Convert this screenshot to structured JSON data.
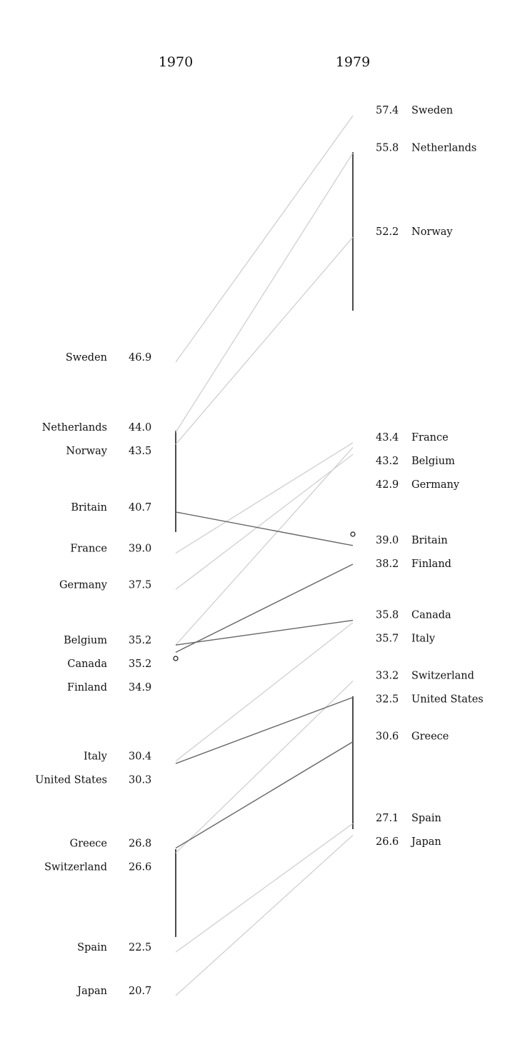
{
  "chart_data": {
    "type": "slope",
    "title": "",
    "columns": [
      "1970",
      "1979"
    ],
    "series": [
      {
        "name": "Sweden",
        "left": 46.9,
        "right": 57.4
      },
      {
        "name": "Netherlands",
        "left": 44.0,
        "right": 55.8
      },
      {
        "name": "Norway",
        "left": 43.5,
        "right": 52.2
      },
      {
        "name": "Britain",
        "left": 40.7,
        "right": 39.0
      },
      {
        "name": "France",
        "left": 39.0,
        "right": 43.4
      },
      {
        "name": "Germany",
        "left": 37.5,
        "right": 42.9
      },
      {
        "name": "Belgium",
        "left": 35.2,
        "right": 43.2
      },
      {
        "name": "Canada",
        "left": 35.2,
        "right": 35.8
      },
      {
        "name": "Finland",
        "left": 34.9,
        "right": 38.2
      },
      {
        "name": "Italy",
        "left": 30.4,
        "right": 35.7
      },
      {
        "name": "United States",
        "left": 30.3,
        "right": 32.5
      },
      {
        "name": "Greece",
        "left": 26.8,
        "right": 30.6
      },
      {
        "name": "Switzerland",
        "left": 26.6,
        "right": 33.2
      },
      {
        "name": "Spain",
        "left": 22.5,
        "right": 27.1
      },
      {
        "name": "Japan",
        "left": 20.7,
        "right": 26.6
      }
    ],
    "left_labels": [
      {
        "name": "Sweden",
        "value": "46.9"
      },
      {
        "name": "Netherlands",
        "value": "44.0"
      },
      {
        "name": "Norway",
        "value": "43.5"
      },
      {
        "name": "Britain",
        "value": "40.7"
      },
      {
        "name": "France",
        "value": "39.0"
      },
      {
        "name": "Germany",
        "value": "37.5"
      },
      {
        "name": "Belgium",
        "value": "35.2"
      },
      {
        "name": "Canada",
        "value": "35.2"
      },
      {
        "name": "Finland",
        "value": "34.9"
      },
      {
        "name": "Italy",
        "value": "30.4"
      },
      {
        "name": "United States",
        "value": "30.3"
      },
      {
        "name": "Greece",
        "value": "26.8"
      },
      {
        "name": "Switzerland",
        "value": "26.6"
      },
      {
        "name": "Spain",
        "value": "22.5"
      },
      {
        "name": "Japan",
        "value": "20.7"
      }
    ],
    "right_labels": [
      {
        "name": "Sweden",
        "value": "57.4"
      },
      {
        "name": "Netherlands",
        "value": "55.8"
      },
      {
        "name": "Norway",
        "value": "52.2"
      },
      {
        "name": "France",
        "value": "43.4"
      },
      {
        "name": "Belgium",
        "value": "43.2"
      },
      {
        "name": "Germany",
        "value": "42.9"
      },
      {
        "name": "Britain",
        "value": "39.0"
      },
      {
        "name": "Finland",
        "value": "38.2"
      },
      {
        "name": "Canada",
        "value": "35.8"
      },
      {
        "name": "Italy",
        "value": "35.7"
      },
      {
        "name": "Switzerland",
        "value": "33.2"
      },
      {
        "name": "United States",
        "value": "32.5"
      },
      {
        "name": "Greece",
        "value": "30.6"
      },
      {
        "name": "Spain",
        "value": "27.1"
      },
      {
        "name": "Japan",
        "value": "26.6"
      }
    ],
    "highlighted": [
      "Britain",
      "Canada",
      "Finland",
      "United States",
      "Greece"
    ],
    "colors": {
      "muted": "#cccccc",
      "highlight": "#666666",
      "text": "#111111"
    }
  }
}
